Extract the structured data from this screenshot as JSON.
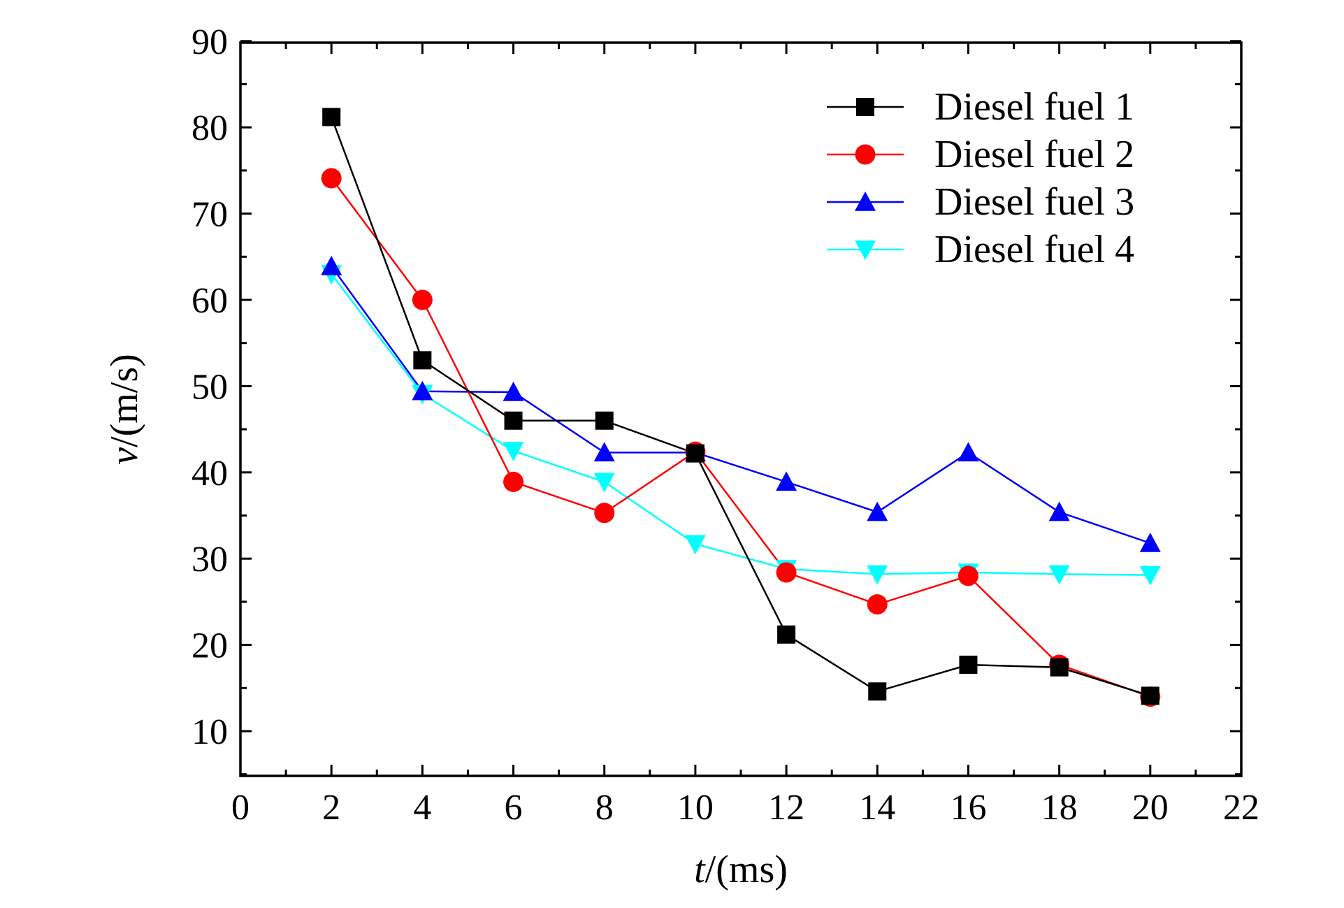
{
  "chart_data": {
    "type": "line",
    "title": "",
    "xlabel": {
      "var": "t",
      "unit": "/(ms)"
    },
    "ylabel": {
      "var": "v",
      "unit": "/(m/s)"
    },
    "xlim": [
      0,
      22
    ],
    "ylim": [
      5,
      90
    ],
    "xticks": [
      0,
      2,
      4,
      6,
      8,
      10,
      12,
      14,
      16,
      18,
      20,
      22
    ],
    "yticks": [
      10,
      20,
      30,
      40,
      50,
      60,
      70,
      80,
      90
    ],
    "grid": false,
    "legend_position": "top-right",
    "x": [
      2,
      4,
      6,
      8,
      10,
      12,
      14,
      16,
      18,
      20
    ],
    "series": [
      {
        "name": "Diesel fuel 1",
        "color": "#000000",
        "marker": "square",
        "values": [
          81.2,
          53.0,
          46.0,
          46.0,
          42.2,
          21.2,
          14.6,
          17.7,
          17.4,
          14.1
        ]
      },
      {
        "name": "Diesel fuel 2",
        "color": "#ff0000",
        "marker": "circle",
        "values": [
          74.1,
          60.0,
          38.9,
          35.3,
          42.4,
          28.4,
          24.7,
          28.0,
          17.7,
          14.0
        ]
      },
      {
        "name": "Diesel fuel 3",
        "color": "#0000ff",
        "marker": "triangle-up",
        "values": [
          63.9,
          49.4,
          49.3,
          42.3,
          42.3,
          38.9,
          35.4,
          42.3,
          35.4,
          31.8
        ]
      },
      {
        "name": "Diesel fuel 4",
        "color": "#00ffff",
        "marker": "triangle-down",
        "values": [
          63.0,
          49.1,
          42.5,
          38.9,
          31.7,
          28.8,
          28.2,
          28.4,
          28.2,
          28.1
        ]
      }
    ]
  }
}
